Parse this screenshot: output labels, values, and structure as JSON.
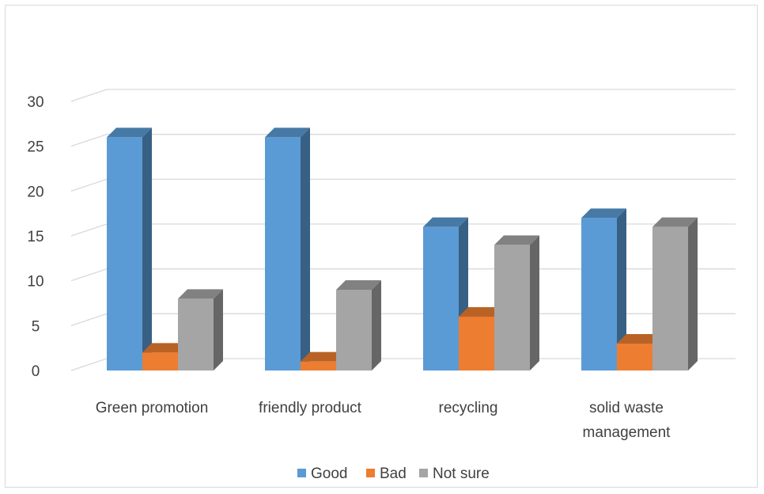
{
  "chart_data": {
    "type": "bar",
    "title": "",
    "xlabel": "",
    "ylabel": "",
    "categories": [
      {
        "lines": [
          "Green promotion"
        ]
      },
      {
        "lines": [
          "friendly product"
        ]
      },
      {
        "lines": [
          "recycling"
        ]
      },
      {
        "lines": [
          "solid waste",
          "management"
        ]
      }
    ],
    "series": [
      {
        "name": "Good",
        "values": [
          26,
          26,
          16,
          17
        ],
        "color": "#5b9bd5"
      },
      {
        "name": "Bad",
        "values": [
          2,
          1,
          6,
          3
        ],
        "color": "#ed7d31"
      },
      {
        "name": "Not sure",
        "values": [
          8,
          9,
          14,
          16
        ],
        "color": "#a5a5a5"
      }
    ],
    "ylim": [
      0,
      30
    ],
    "yticks": [
      "0",
      "5",
      "10",
      "15",
      "20",
      "25",
      "30"
    ],
    "grid": true,
    "style": "3d-clustered-column",
    "legend_position": "bottom"
  }
}
